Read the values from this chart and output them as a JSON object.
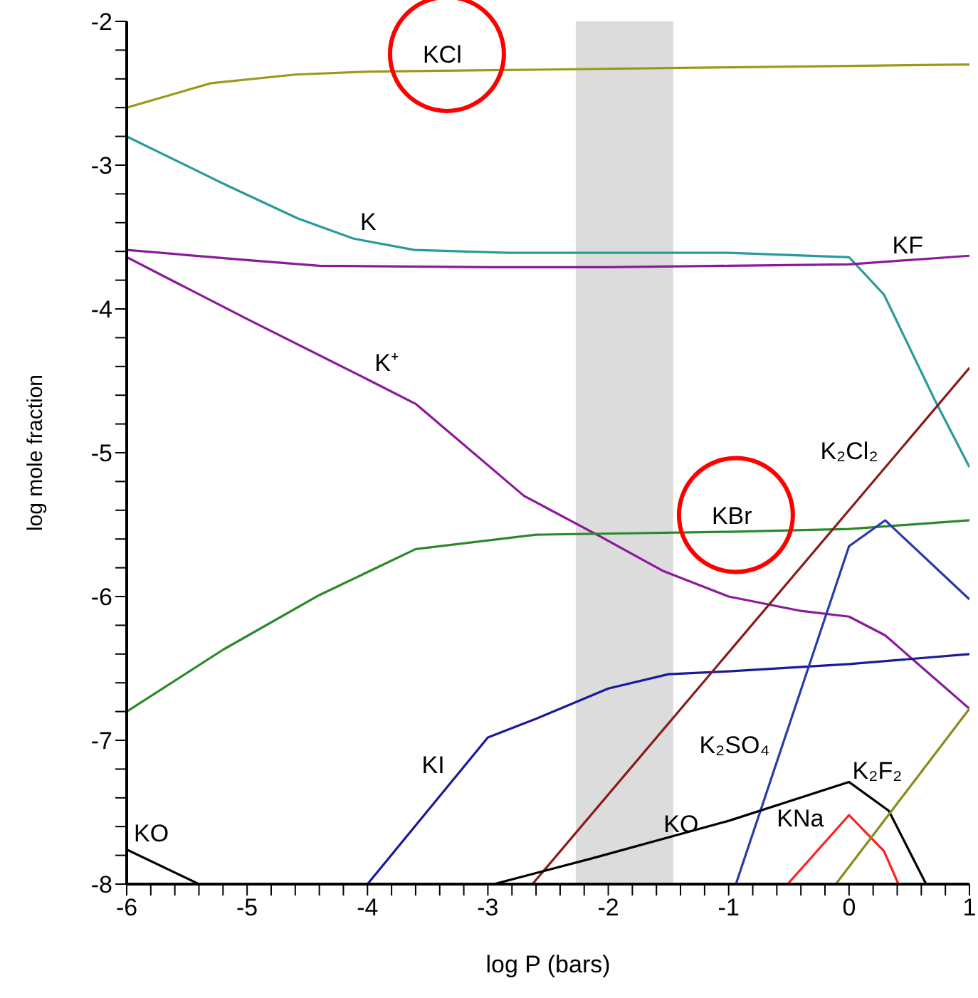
{
  "chart_data": {
    "type": "line",
    "xlabel": "log P (bars)",
    "ylabel": "log mole fraction",
    "xlim": [
      -6,
      1
    ],
    "ylim": [
      -8,
      -2
    ],
    "xticks": [
      -6,
      {
        "value": -5.8,
        "label": null
      },
      {
        "value": -5.6,
        "label": null
      },
      {
        "value": -5.4,
        "label": null
      },
      {
        "value": -5.2,
        "label": null
      },
      -5,
      {
        "value": -4.8,
        "label": null
      },
      {
        "value": -4.6,
        "label": null
      },
      {
        "value": -4.4,
        "label": null
      },
      {
        "value": -4.2,
        "label": null
      },
      -4,
      {
        "value": -3.8,
        "label": null
      },
      {
        "value": -3.6,
        "label": null
      },
      {
        "value": -3.4,
        "label": null
      },
      {
        "value": -3.2,
        "label": null
      },
      -3,
      {
        "value": -2.8,
        "label": null
      },
      {
        "value": -2.6,
        "label": null
      },
      {
        "value": -2.4,
        "label": null
      },
      {
        "value": -2.2,
        "label": null
      },
      -2,
      {
        "value": -1.8,
        "label": null
      },
      {
        "value": -1.6,
        "label": null
      },
      {
        "value": -1.4,
        "label": null
      },
      {
        "value": -1.2,
        "label": null
      },
      -1,
      {
        "value": -0.8,
        "label": null
      },
      {
        "value": -0.6,
        "label": null
      },
      {
        "value": -0.4,
        "label": null
      },
      {
        "value": -0.2,
        "label": null
      },
      0,
      {
        "value": 0.2,
        "label": null
      },
      {
        "value": 0.4,
        "label": null
      },
      {
        "value": 0.6,
        "label": null
      },
      {
        "value": 0.8,
        "label": null
      },
      1
    ],
    "yticks": [
      -8,
      {
        "value": -7.8,
        "label": null
      },
      {
        "value": -7.6,
        "label": null
      },
      {
        "value": -7.4,
        "label": null
      },
      {
        "value": -7.2,
        "label": null
      },
      -7,
      {
        "value": -6.8,
        "label": null
      },
      {
        "value": -6.6,
        "label": null
      },
      {
        "value": -6.4,
        "label": null
      },
      {
        "value": -6.2,
        "label": null
      },
      -6,
      {
        "value": -5.8,
        "label": null
      },
      {
        "value": -5.6,
        "label": null
      },
      {
        "value": -5.4,
        "label": null
      },
      {
        "value": -5.2,
        "label": null
      },
      -5,
      {
        "value": -4.8,
        "label": null
      },
      {
        "value": -4.6,
        "label": null
      },
      {
        "value": -4.4,
        "label": null
      },
      {
        "value": -4.2,
        "label": null
      },
      -4,
      {
        "value": -3.8,
        "label": null
      },
      {
        "value": -3.6,
        "label": null
      },
      {
        "value": -3.4,
        "label": null
      },
      {
        "value": -3.2,
        "label": null
      },
      -3,
      {
        "value": -2.8,
        "label": null
      },
      {
        "value": -2.6,
        "label": null
      },
      {
        "value": -2.4,
        "label": null
      },
      {
        "value": -2.2,
        "label": null
      },
      -2
    ],
    "bands": [
      {
        "axis": "x",
        "from": -2.27,
        "to": -1.46,
        "color": "#dcdcdc"
      }
    ],
    "series": [
      {
        "color": "#9a9a1a",
        "x": [
          -6,
          -5.3,
          -4.6,
          -4,
          -3,
          -2,
          -1,
          0,
          1
        ],
        "values": [
          -2.6,
          -2.43,
          -2.37,
          -2.35,
          -2.34,
          -2.33,
          -2.32,
          -2.31,
          -2.3
        ]
      },
      {
        "color": "#2a9a9a",
        "x": [
          -6,
          -5.17,
          -4.58,
          -4.12,
          -3.61,
          -2.83,
          -1,
          0,
          0.29,
          0.71,
          1
        ],
        "values": [
          -2.8,
          -3.14,
          -3.37,
          -3.51,
          -3.59,
          -3.61,
          -3.61,
          -3.64,
          -3.9,
          -4.63,
          -5.1
        ]
      },
      {
        "color": "#8a1a9a",
        "x": [
          -6,
          -5,
          -4.4,
          -3,
          -2,
          -1,
          0,
          0.5,
          1
        ],
        "values": [
          -3.59,
          -3.66,
          -3.7,
          -3.71,
          -3.71,
          -3.7,
          -3.69,
          -3.66,
          -3.63
        ]
      },
      {
        "color": "#8a1a9a",
        "x": [
          -6,
          -5,
          -4,
          -3.6,
          -2.7,
          -2.05,
          -1.55,
          -1,
          -0.4,
          0,
          0.3,
          1
        ],
        "values": [
          -3.64,
          -4.07,
          -4.49,
          -4.66,
          -5.3,
          -5.59,
          -5.82,
          -6.0,
          -6.1,
          -6.14,
          -6.27,
          -6.78
        ]
      },
      {
        "color": "#2a8a2a",
        "x": [
          -6,
          -5.2,
          -4.4,
          -3.6,
          -2.6,
          -1,
          0,
          1
        ],
        "values": [
          -6.8,
          -6.37,
          -5.99,
          -5.67,
          -5.57,
          -5.55,
          -5.53,
          -5.47
        ]
      },
      {
        "color": "#1a1a9a",
        "x": [
          -4,
          -3,
          -2.6,
          -2,
          -1.5,
          -1,
          0,
          1
        ],
        "values": [
          -8,
          -6.98,
          -6.85,
          -6.64,
          -6.54,
          -6.52,
          -6.47,
          -6.4
        ]
      },
      {
        "color": "#8a1a1a",
        "x": [
          -2.63,
          1
        ],
        "values": [
          -8,
          -4.41
        ]
      },
      {
        "color": "#2a3aaa",
        "x": [
          -0.94,
          0,
          0.3,
          1
        ],
        "values": [
          -8,
          -5.65,
          -5.47,
          -6.02
        ]
      },
      {
        "color": "#000000",
        "x": [
          -6,
          -5.4,
          -4,
          -2.95,
          -2.13,
          -1,
          0,
          0.33,
          0.64
        ],
        "values": [
          -7.76,
          -8,
          null,
          -8,
          -7.82,
          -7.56,
          -7.29,
          -7.49,
          -8
        ]
      },
      {
        "color": "#ff2020",
        "x": [
          -0.51,
          0,
          0.29,
          0.41
        ],
        "values": [
          -8,
          -7.52,
          -7.77,
          -8
        ]
      },
      {
        "color": "#8a8a1a",
        "x": [
          -0.11,
          1
        ],
        "values": [
          -8,
          -6.78
        ]
      }
    ],
    "annotations": [
      {
        "text": "KCl",
        "x": -3.6,
        "y": -2.346
      },
      {
        "text": "K",
        "x": -4.12,
        "y": -3.51
      },
      {
        "text": "KF",
        "x": 0.3,
        "y": -3.672
      },
      {
        "text": "K⁺",
        "x": -4,
        "y": -4.49
      },
      {
        "text": "KBr",
        "x": -1.2,
        "y": -5.552
      },
      {
        "text": "K₂Cl₂",
        "x": 0.3,
        "y": -5.102
      },
      {
        "text": "KI",
        "x": -3.3,
        "y": -7.286
      },
      {
        "text": "K₂SO₄",
        "x": -0.6,
        "y": -7.15
      },
      {
        "text": "KO",
        "x": -1.6,
        "y": -7.698
      },
      {
        "text": "KO",
        "x": -6,
        "y": -7.76
      },
      {
        "text": "KNa",
        "x": -0.15,
        "y": -7.66
      },
      {
        "text": "K₂F₂",
        "x": 0.5,
        "y": -7.329
      }
    ]
  }
}
